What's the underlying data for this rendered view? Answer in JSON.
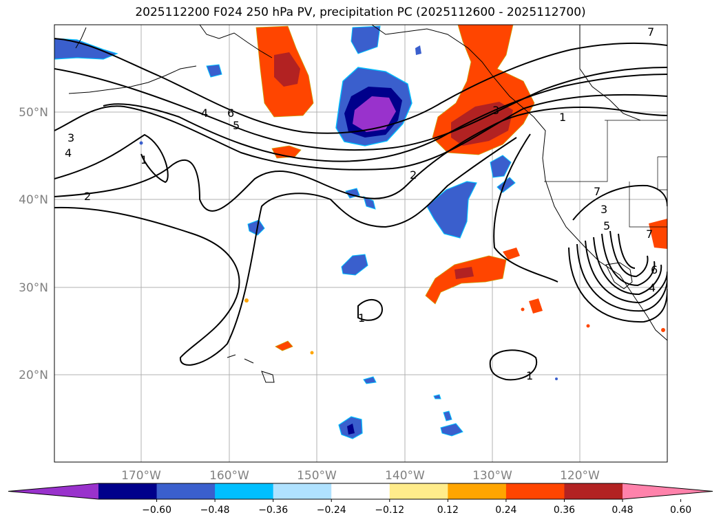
{
  "title": "2025112200 F024 250 hPa PV, precipitation PC (2025112600 - 2025112700)",
  "map": {
    "lon_labels": [
      "170°W",
      "160°W",
      "150°W",
      "140°W",
      "130°W",
      "120°W"
    ],
    "lat_labels": [
      "50°N",
      "40°N",
      "30°N",
      "20°N"
    ],
    "lon_range": [
      -180,
      -110
    ],
    "lat_range": [
      10,
      60
    ],
    "grid": true
  },
  "contour_labels": [
    "7",
    "6",
    "5",
    "4",
    "3",
    "4",
    "2",
    "1",
    "2",
    "3",
    "1",
    "1",
    "1",
    "3",
    "5",
    "7",
    "6",
    "4",
    "7"
  ],
  "colorbar": {
    "ticks": [
      "−0.60",
      "−0.48",
      "−0.36",
      "−0.24",
      "−0.12",
      "0.12",
      "0.24",
      "0.36",
      "0.48",
      "0.60"
    ],
    "colors": [
      "#9932cc",
      "#00008b",
      "#3a5fcd",
      "#00bfff",
      "#b0e2ff",
      "#ffffff",
      "#ffec8b",
      "#ffa500",
      "#ff4500",
      "#b22222",
      "#ff82ab"
    ],
    "extend": "both"
  }
}
